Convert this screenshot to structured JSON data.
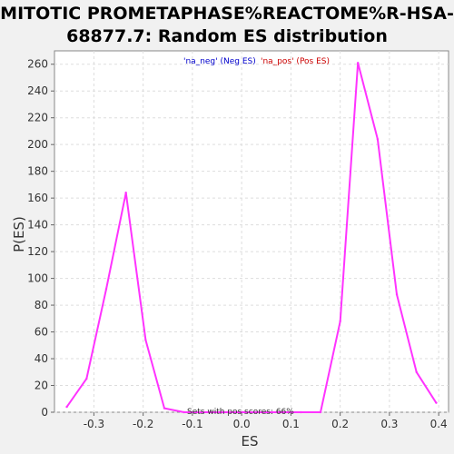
{
  "chart_data": {
    "type": "line",
    "title_lines": [
      "MITOTIC PROMETAPHASE%REACTOME%R-HSA-",
      "68877.7: Random ES distribution"
    ],
    "xlabel": "ES",
    "ylabel": "P(ES)",
    "xlim": [
      -0.38,
      0.42
    ],
    "ylim": [
      0,
      270
    ],
    "x_ticks": [
      -0.3,
      -0.2,
      -0.1,
      0.0,
      0.1,
      0.2,
      0.3,
      0.4
    ],
    "x_tick_labels": [
      "-0.3",
      "-0.2",
      "-0.1",
      "0.0",
      "0.1",
      "0.2",
      "0.3",
      "0.4"
    ],
    "y_ticks": [
      0,
      20,
      40,
      60,
      80,
      100,
      120,
      140,
      160,
      180,
      200,
      220,
      240,
      260
    ],
    "y_tick_labels": [
      "0",
      "20",
      "40",
      "60",
      "80",
      "100",
      "120",
      "140",
      "160",
      "180",
      "200",
      "220",
      "240",
      "260"
    ],
    "grid": true,
    "legend": [
      {
        "label": "'na_neg' (Neg ES)",
        "color": "#0000cc"
      },
      {
        "label": "'na_pos' (Pos ES)",
        "color": "#cc0000"
      }
    ],
    "annotation": "Sets with pos scores: 66%",
    "series": [
      {
        "color": "#ff33ff",
        "x": [
          -0.355,
          -0.315,
          -0.275,
          -0.235,
          -0.195,
          -0.157,
          -0.117,
          -0.077,
          -0.04,
          0.0,
          0.04,
          0.08,
          0.12,
          0.16,
          0.2,
          0.236,
          0.276,
          0.315,
          0.355,
          0.395
        ],
        "y": [
          4,
          25,
          92,
          164,
          54,
          3,
          0,
          0,
          0,
          0,
          0,
          0,
          0,
          0,
          68,
          261,
          204,
          88,
          30,
          7
        ]
      }
    ]
  }
}
